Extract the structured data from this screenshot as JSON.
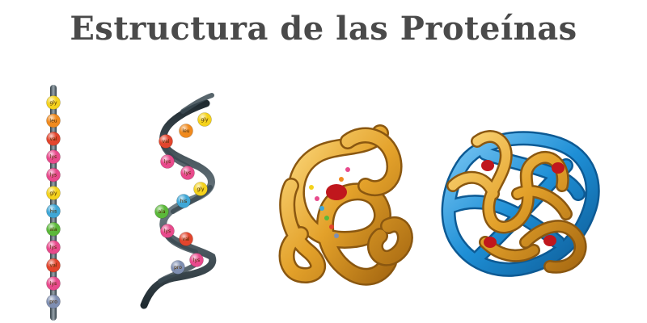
{
  "title": "Estructura de las Proteínas",
  "colors": {
    "title": "#4a4a4a",
    "gly": "#f4d21c",
    "leu": "#f08a1e",
    "val": "#e2452d",
    "lys": "#e84a8c",
    "his": "#3fa7d6",
    "ala": "#5bb83a",
    "pro": "#7f8fb2",
    "tube_gold": "#e7a52b",
    "tube_blue": "#1e8fd6",
    "heme": "#c0171d"
  },
  "primary": {
    "beads": [
      "gly",
      "leu",
      "val",
      "lys",
      "lys",
      "gly",
      "his",
      "ala",
      "lys",
      "val",
      "lys",
      "pro"
    ]
  },
  "secondary": {
    "beads": [
      "gly",
      "leu",
      "val",
      "lys",
      "lys",
      "gly",
      "his",
      "ala",
      "lys",
      "val",
      "lys",
      "pro"
    ]
  },
  "tertiary": {
    "icon": "tertiary-structure-icon"
  },
  "quaternary": {
    "icon": "quaternary-structure-icon"
  }
}
